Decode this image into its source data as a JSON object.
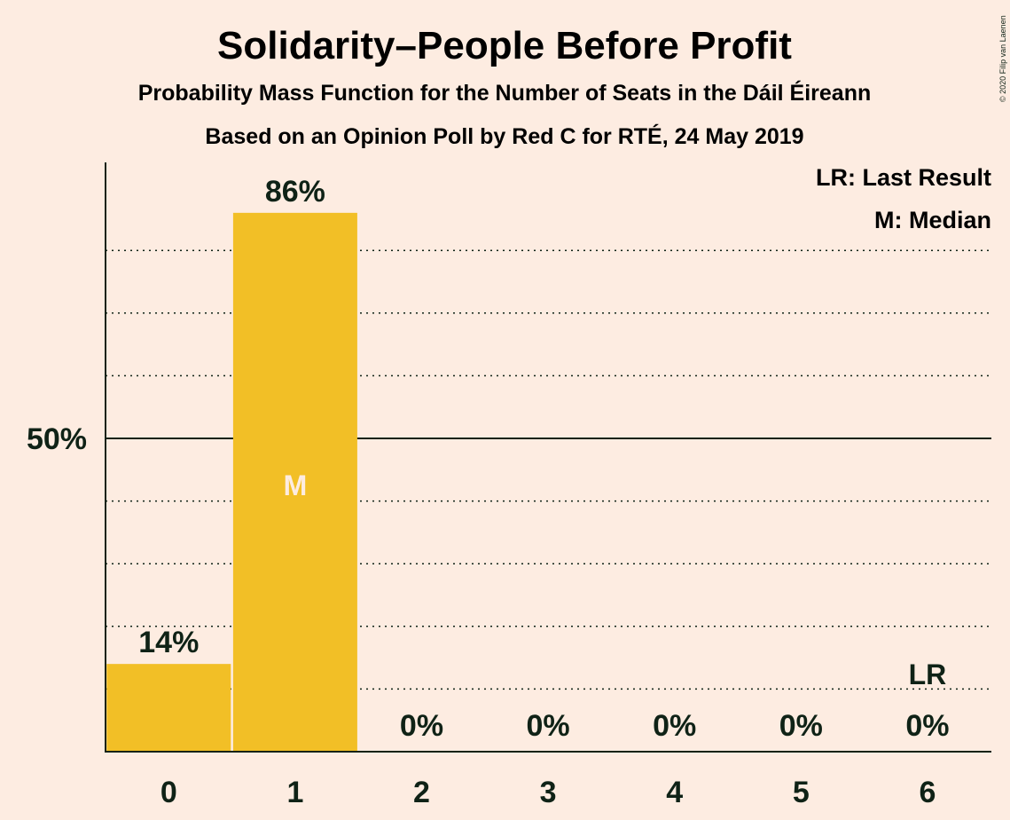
{
  "title": "Solidarity–People Before Profit",
  "subtitle1": "Probability Mass Function for the Number of Seats in the Dáil Éireann",
  "subtitle2": "Based on an Opinion Poll by Red C for RTÉ, 24 May 2019",
  "copyright": "© 2020 Filip van Laenen",
  "legend": {
    "lr": "LR: Last Result",
    "median": "M: Median"
  },
  "colors": {
    "background": "#fdece1",
    "bar": "#f2bf26",
    "text": "#0f2216"
  },
  "chart_data": {
    "type": "bar",
    "categories": [
      "0",
      "1",
      "2",
      "3",
      "4",
      "5",
      "6"
    ],
    "values": [
      14,
      86,
      0,
      0,
      0,
      0,
      0
    ],
    "value_labels": [
      "14%",
      "86%",
      "0%",
      "0%",
      "0%",
      "0%",
      "0%"
    ],
    "ylim": [
      0,
      94
    ],
    "y_major_tick": {
      "value": 50,
      "label": "50%"
    },
    "y_minor_gridlines": [
      10,
      20,
      30,
      40,
      60,
      70,
      80
    ],
    "median_category": "1",
    "median_marker": "M",
    "last_result_category": "6",
    "last_result_marker": "LR",
    "grid": true,
    "legend_position": "top-right"
  }
}
